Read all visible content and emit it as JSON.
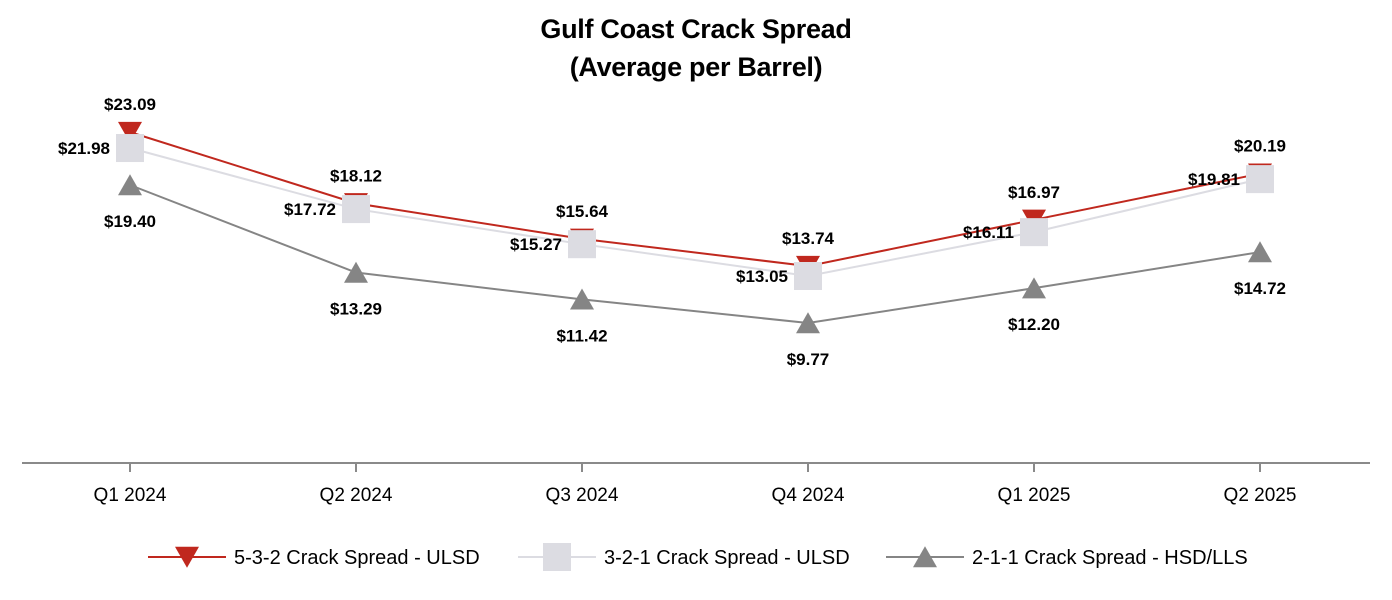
{
  "chart_data": {
    "type": "line",
    "title": "Gulf Coast Crack Spread",
    "subtitle": "(Average per Barrel)",
    "categories": [
      "Q1 2024",
      "Q2 2024",
      "Q3 2024",
      "Q4 2024",
      "Q1 2025",
      "Q2 2025"
    ],
    "ylim": [
      0,
      25
    ],
    "grid": false,
    "legend_position": "bottom",
    "series": [
      {
        "name": "5-3-2 Crack Spread - ULSD",
        "values": [
          23.09,
          18.12,
          15.64,
          13.74,
          16.97,
          20.19
        ],
        "labels": [
          "$23.09",
          "$18.12",
          "$15.64",
          "$13.74",
          "$16.97",
          "$20.19"
        ],
        "color": "#c0281e",
        "marker": "triangle-down"
      },
      {
        "name": "3-2-1 Crack Spread - ULSD",
        "values": [
          21.98,
          17.72,
          15.27,
          13.05,
          16.11,
          19.81
        ],
        "labels": [
          "$21.98",
          "$17.72",
          "$15.27",
          "$13.05",
          "$16.11",
          "$19.81"
        ],
        "color": "#dcdce2",
        "marker": "square"
      },
      {
        "name": "2-1-1 Crack Spread - HSD/LLS",
        "values": [
          19.4,
          13.29,
          11.42,
          9.77,
          12.2,
          14.72
        ],
        "labels": [
          "$19.40",
          "$13.29",
          "$11.42",
          "$9.77",
          "$12.20",
          "$14.72"
        ],
        "color": "#858585",
        "marker": "triangle-up"
      }
    ]
  }
}
